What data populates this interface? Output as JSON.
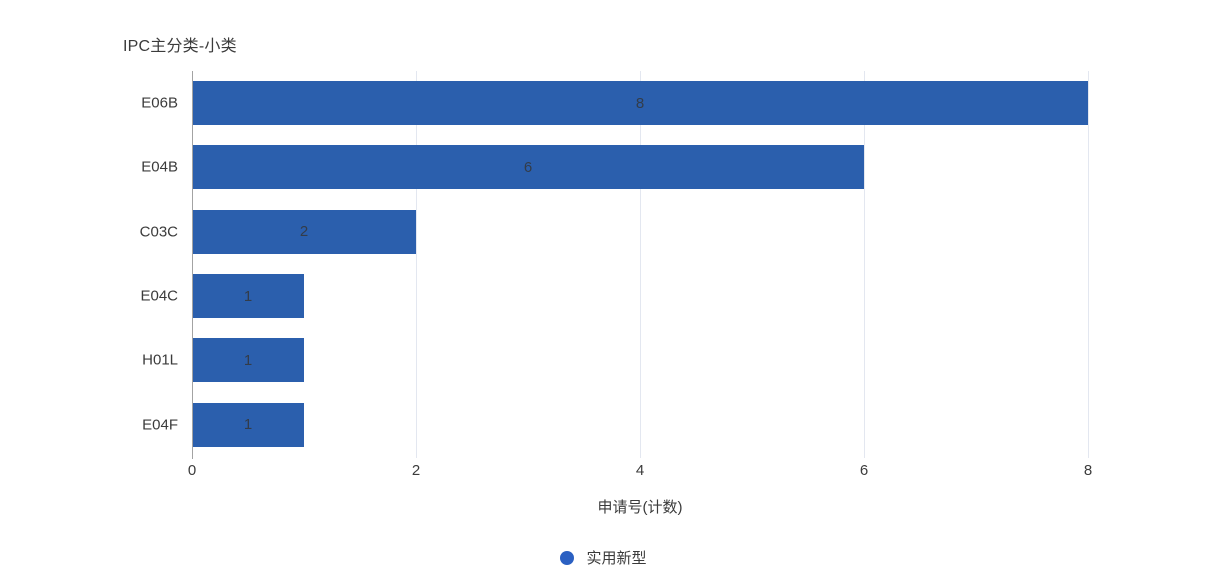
{
  "chart_data": {
    "type": "bar",
    "orientation": "horizontal",
    "title": "IPC主分类-小类",
    "categories": [
      "E06B",
      "E04B",
      "C03C",
      "E04C",
      "H01L",
      "E04F"
    ],
    "values": [
      8,
      6,
      2,
      1,
      1,
      1
    ],
    "series": [
      {
        "name": "实用新型",
        "values": [
          8,
          6,
          2,
          1,
          1,
          1
        ]
      }
    ],
    "xlabel": "申请号(计数)",
    "ylabel": "",
    "xlim": [
      0,
      8
    ],
    "xticks": [
      "0",
      "2",
      "4",
      "6",
      "8"
    ],
    "grid": "vertical-gridlines-on",
    "legend_position": "bottom",
    "bar_color": "#2b5fad",
    "value_label_color": "#333c49",
    "gridline_color": "#e3e7f0",
    "axis_line_color": "#a3a3a3",
    "text_color": "#3b3b3b"
  },
  "legend": {
    "items": [
      {
        "label": "实用新型",
        "marker": "circle",
        "color": "#2b60c2"
      }
    ]
  }
}
